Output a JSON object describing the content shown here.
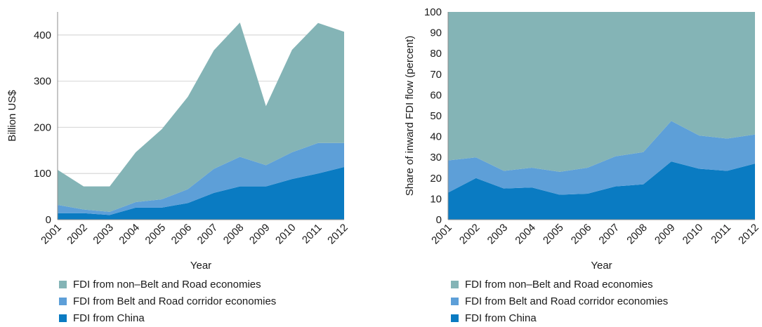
{
  "colors": {
    "non_bri": "#84b4b6",
    "bri": "#5d9fd8",
    "china": "#0a7bc2",
    "grid": "#d9d9d9",
    "axis": "#8c8c8c"
  },
  "legend": [
    {
      "label": "FDI from non–Belt and Road economies",
      "color_key": "non_bri"
    },
    {
      "label": "FDI from Belt and Road corridor economies",
      "color_key": "bri"
    },
    {
      "label": "FDI from China",
      "color_key": "china"
    }
  ],
  "chart_data": [
    {
      "type": "area",
      "stacked": true,
      "x": [
        "2001",
        "2002",
        "2003",
        "2004",
        "2005",
        "2006",
        "2007",
        "2008",
        "2009",
        "2010",
        "2011",
        "2012"
      ],
      "xlabel": "Year",
      "ylabel": "Billion US$",
      "ylim": [
        0,
        450
      ],
      "yticks": [
        0,
        100,
        200,
        300,
        400
      ],
      "grid": true,
      "series": [
        {
          "name": "FDI from China",
          "color_key": "china",
          "values": [
            14,
            14,
            10,
            26,
            26,
            36,
            58,
            72,
            72,
            88,
            100,
            114
          ]
        },
        {
          "name": "FDI from Belt and Road corridor economies",
          "color_key": "bri",
          "values": [
            18,
            8,
            7,
            12,
            18,
            30,
            52,
            64,
            46,
            58,
            66,
            52
          ]
        },
        {
          "name": "FDI from non–Belt and Road economies",
          "color_key": "non_bri",
          "values": [
            76,
            50,
            55,
            108,
            152,
            200,
            257,
            291,
            128,
            222,
            260,
            241
          ]
        }
      ]
    },
    {
      "type": "area",
      "stacked": true,
      "x": [
        "2001",
        "2002",
        "2003",
        "2004",
        "2005",
        "2006",
        "2007",
        "2008",
        "2009",
        "2010",
        "2011",
        "2012"
      ],
      "xlabel": "Year",
      "ylabel": "Share of inward FDI flow (percent)",
      "ylim": [
        0,
        100
      ],
      "yticks": [
        0,
        10,
        20,
        30,
        40,
        50,
        60,
        70,
        80,
        90,
        100
      ],
      "grid": false,
      "series": [
        {
          "name": "FDI from China",
          "color_key": "china",
          "values": [
            13,
            20,
            15,
            15.5,
            12,
            12.5,
            16,
            17,
            28,
            24.5,
            23.5,
            27
          ]
        },
        {
          "name": "FDI from Belt and Road corridor economies",
          "color_key": "bri",
          "values": [
            15.5,
            10,
            8.5,
            9.5,
            11,
            12.5,
            14.5,
            15.5,
            19.5,
            16,
            15.5,
            14
          ]
        },
        {
          "name": "FDI from non–Belt and Road economies",
          "color_key": "non_bri",
          "values": [
            71.5,
            70,
            76.5,
            75,
            77,
            75,
            69.5,
            67.5,
            52.5,
            59.5,
            61,
            59
          ]
        }
      ]
    }
  ]
}
